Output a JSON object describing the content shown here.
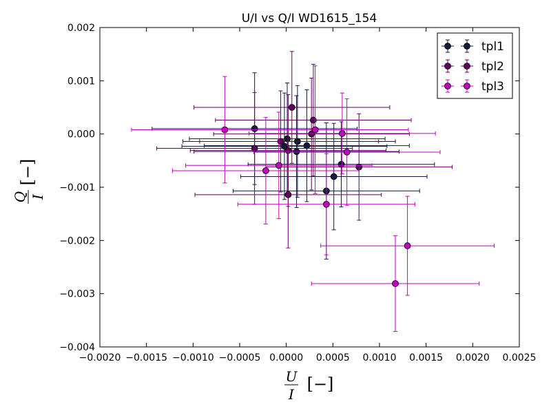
{
  "chart_data": {
    "type": "scatter",
    "title": "U/I vs Q/I WD1615_154",
    "xlabel": {
      "num": "U",
      "den": "I",
      "unit": "[−]"
    },
    "ylabel": {
      "num": "Q",
      "den": "I",
      "unit": "[−]"
    },
    "xlim": [
      -0.002,
      0.0025
    ],
    "ylim": [
      -0.004,
      0.002
    ],
    "xticks": [
      -0.002,
      -0.0015,
      -0.001,
      -0.0005,
      0.0,
      0.0005,
      0.001,
      0.0015,
      0.002,
      0.0025
    ],
    "xtick_labels": [
      "−0.0020",
      "−0.0015",
      "−0.0010",
      "−0.0005",
      "0.0000",
      "0.0005",
      "0.0010",
      "0.0015",
      "0.0020",
      "0.0025"
    ],
    "yticks": [
      -0.004,
      -0.003,
      -0.002,
      -0.001,
      0.0,
      0.001,
      0.002
    ],
    "ytick_labels": [
      "−0.004",
      "−0.003",
      "−0.002",
      "−0.001",
      "0.000",
      "0.001",
      "0.002"
    ],
    "grid": false,
    "legend_position": "top-right",
    "series": [
      {
        "name": "tpl1",
        "color": "#0d1a3d",
        "points": [
          {
            "x": -0.00034,
            "y": 0.0001,
            "xerr": 0.0011,
            "yerr": 0.00105
          },
          {
            "x": -2e-05,
            "y": -0.00023,
            "xerr": 0.0011,
            "yerr": 0.001
          },
          {
            "x": 1e-05,
            "y": -9e-05,
            "xerr": 0.00105,
            "yerr": 0.00105
          },
          {
            "x": 0.00012,
            "y": -0.00014,
            "xerr": 0.00105,
            "yerr": 0.00105
          },
          {
            "x": 0.00011,
            "y": -0.00033,
            "xerr": 0.0011,
            "yerr": 0.00105
          },
          {
            "x": 0.00022,
            "y": -0.00022,
            "xerr": 0.0011,
            "yerr": 0.00105
          },
          {
            "x": 0.00051,
            "y": -0.0008,
            "xerr": 0.001,
            "yerr": 0.001
          },
          {
            "x": 0.00059,
            "y": -0.00057,
            "xerr": 0.001,
            "yerr": 0.0008
          },
          {
            "x": 0.00043,
            "y": -0.00107,
            "xerr": 0.001,
            "yerr": 0.00128
          }
        ]
      },
      {
        "name": "tpl2",
        "color": "#5c005c",
        "points": [
          {
            "x": 6e-05,
            "y": 0.0005,
            "xerr": 0.00105,
            "yerr": 0.00105
          },
          {
            "x": 0.00029,
            "y": 0.00026,
            "xerr": 0.00105,
            "yerr": 0.00105
          },
          {
            "x": 0.00027,
            "y": 0.0,
            "xerr": 0.00105,
            "yerr": 0.00105
          },
          {
            "x": -0.00034,
            "y": -0.00027,
            "xerr": 0.00105,
            "yerr": 0.00105
          },
          {
            "x": -6e-05,
            "y": -0.00014,
            "xerr": 0.00105,
            "yerr": 0.00095
          },
          {
            "x": 2e-05,
            "y": -0.00031,
            "xerr": 0.00105,
            "yerr": 0.00105
          },
          {
            "x": 0.00078,
            "y": -0.00062,
            "xerr": 0.001,
            "yerr": 0.001
          },
          {
            "x": 2e-05,
            "y": -0.00114,
            "xerr": 0.001,
            "yerr": 0.001
          }
        ]
      },
      {
        "name": "tpl3",
        "color": "#c000c0",
        "points": [
          {
            "x": -0.00066,
            "y": 8e-05,
            "xerr": 0.001,
            "yerr": 0.001
          },
          {
            "x": 0.00031,
            "y": 8e-05,
            "xerr": 0.001,
            "yerr": 0.0012
          },
          {
            "x": 0.0006,
            "y": 1e-05,
            "xerr": 0.001,
            "yerr": 0.00076
          },
          {
            "x": 0.00065,
            "y": -0.00034,
            "xerr": 0.001,
            "yerr": 0.001
          },
          {
            "x": -8e-05,
            "y": -0.00059,
            "xerr": 0.001,
            "yerr": 0.001
          },
          {
            "x": -0.00022,
            "y": -0.00069,
            "xerr": 0.001,
            "yerr": 0.001
          },
          {
            "x": 0.00043,
            "y": -0.00132,
            "xerr": 0.00095,
            "yerr": 0.00095
          },
          {
            "x": 0.0013,
            "y": -0.0021,
            "xerr": 0.00093,
            "yerr": 0.00093
          },
          {
            "x": 0.00117,
            "y": -0.00281,
            "xerr": 0.0009,
            "yerr": 0.0009
          }
        ]
      }
    ]
  }
}
